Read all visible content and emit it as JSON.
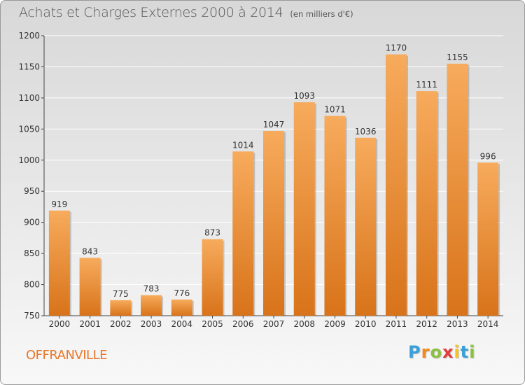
{
  "title": "Achats et Charges Externes 2000 à 2014",
  "unit": "(en milliers d'€)",
  "town": "OFFRANVILLE",
  "logo": {
    "letters": [
      "P",
      "r",
      "o",
      "x",
      "i",
      "t",
      "i"
    ],
    "colors": [
      "#39a0d8",
      "#f08a1c",
      "#8cc13f",
      "#e23b3b",
      "#f5c518",
      "#39a0d8",
      "#8cc13f"
    ]
  },
  "colors": {
    "bar_light": "#f7ab5c",
    "bar_dark": "#d8731a",
    "grid": "#ffffff",
    "axis_text": "#333333",
    "title_text": "#555555",
    "town_text": "#e8772b"
  },
  "chart_data": {
    "type": "bar",
    "categories": [
      "2000",
      "2001",
      "2002",
      "2003",
      "2004",
      "2005",
      "2006",
      "2007",
      "2008",
      "2009",
      "2010",
      "2011",
      "2012",
      "2013",
      "2014"
    ],
    "values": [
      919,
      843,
      775,
      783,
      776,
      873,
      1014,
      1047,
      1093,
      1071,
      1036,
      1170,
      1111,
      1155,
      996
    ],
    "ylim": [
      750,
      1200
    ],
    "yticks": [
      750,
      800,
      850,
      900,
      950,
      1000,
      1050,
      1100,
      1150,
      1200
    ],
    "grid": true
  }
}
